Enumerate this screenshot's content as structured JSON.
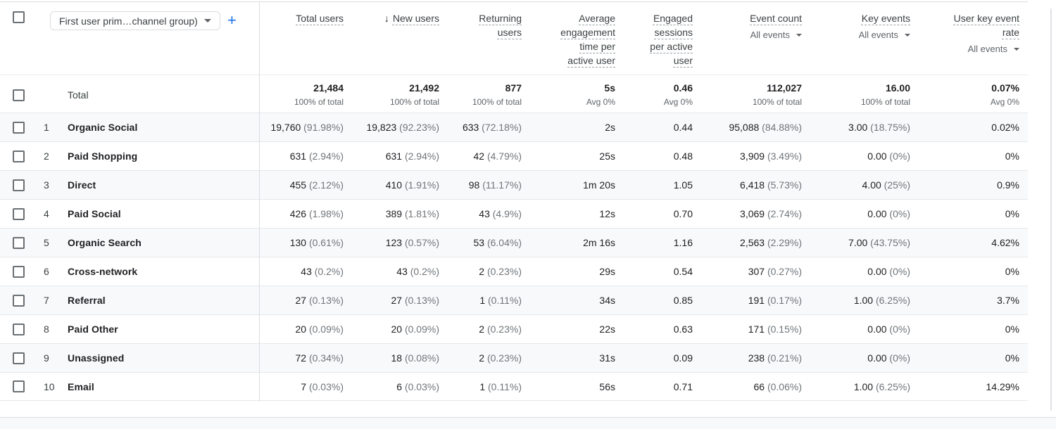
{
  "header": {
    "dimension_selector": "First user prim…channel group)",
    "add_dimension": "+"
  },
  "columns": [
    {
      "label": "Total users"
    },
    {
      "label": "New users",
      "sorted": "desc"
    },
    {
      "label": "Returning users"
    },
    {
      "label": "Average engagement time per active user"
    },
    {
      "label": "Engaged sessions per active user"
    },
    {
      "label": "Event count",
      "filter": "All events"
    },
    {
      "label": "Key events",
      "filter": "All events"
    },
    {
      "label": "User key event rate",
      "filter": "All events"
    }
  ],
  "total_row": {
    "label": "Total",
    "metrics": [
      {
        "v": "21,484",
        "sub": "100% of total"
      },
      {
        "v": "21,492",
        "sub": "100% of total"
      },
      {
        "v": "877",
        "sub": "100% of total"
      },
      {
        "v": "5s",
        "sub": "Avg 0%"
      },
      {
        "v": "0.46",
        "sub": "Avg 0%"
      },
      {
        "v": "112,027",
        "sub": "100% of total"
      },
      {
        "v": "16.00",
        "sub": "100% of total"
      },
      {
        "v": "0.07%",
        "sub": "Avg 0%"
      }
    ]
  },
  "rows": [
    {
      "num": "1",
      "channel": "Organic Social",
      "metrics": [
        {
          "v": "19,760",
          "p": "(91.98%)"
        },
        {
          "v": "19,823",
          "p": "(92.23%)"
        },
        {
          "v": "633",
          "p": "(72.18%)"
        },
        {
          "v": "2s"
        },
        {
          "v": "0.44"
        },
        {
          "v": "95,088",
          "p": "(84.88%)"
        },
        {
          "v": "3.00",
          "p": "(18.75%)"
        },
        {
          "v": "0.02%"
        }
      ]
    },
    {
      "num": "2",
      "channel": "Paid Shopping",
      "metrics": [
        {
          "v": "631",
          "p": "(2.94%)"
        },
        {
          "v": "631",
          "p": "(2.94%)"
        },
        {
          "v": "42",
          "p": "(4.79%)"
        },
        {
          "v": "25s"
        },
        {
          "v": "0.48"
        },
        {
          "v": "3,909",
          "p": "(3.49%)"
        },
        {
          "v": "0.00",
          "p": "(0%)"
        },
        {
          "v": "0%"
        }
      ]
    },
    {
      "num": "3",
      "channel": "Direct",
      "metrics": [
        {
          "v": "455",
          "p": "(2.12%)"
        },
        {
          "v": "410",
          "p": "(1.91%)"
        },
        {
          "v": "98",
          "p": "(11.17%)"
        },
        {
          "v": "1m 20s"
        },
        {
          "v": "1.05"
        },
        {
          "v": "6,418",
          "p": "(5.73%)"
        },
        {
          "v": "4.00",
          "p": "(25%)"
        },
        {
          "v": "0.9%"
        }
      ]
    },
    {
      "num": "4",
      "channel": "Paid Social",
      "metrics": [
        {
          "v": "426",
          "p": "(1.98%)"
        },
        {
          "v": "389",
          "p": "(1.81%)"
        },
        {
          "v": "43",
          "p": "(4.9%)"
        },
        {
          "v": "12s"
        },
        {
          "v": "0.70"
        },
        {
          "v": "3,069",
          "p": "(2.74%)"
        },
        {
          "v": "0.00",
          "p": "(0%)"
        },
        {
          "v": "0%"
        }
      ]
    },
    {
      "num": "5",
      "channel": "Organic Search",
      "metrics": [
        {
          "v": "130",
          "p": "(0.61%)"
        },
        {
          "v": "123",
          "p": "(0.57%)"
        },
        {
          "v": "53",
          "p": "(6.04%)"
        },
        {
          "v": "2m 16s"
        },
        {
          "v": "1.16"
        },
        {
          "v": "2,563",
          "p": "(2.29%)"
        },
        {
          "v": "7.00",
          "p": "(43.75%)"
        },
        {
          "v": "4.62%"
        }
      ]
    },
    {
      "num": "6",
      "channel": "Cross-network",
      "metrics": [
        {
          "v": "43",
          "p": "(0.2%)"
        },
        {
          "v": "43",
          "p": "(0.2%)"
        },
        {
          "v": "2",
          "p": "(0.23%)"
        },
        {
          "v": "29s"
        },
        {
          "v": "0.54"
        },
        {
          "v": "307",
          "p": "(0.27%)"
        },
        {
          "v": "0.00",
          "p": "(0%)"
        },
        {
          "v": "0%"
        }
      ]
    },
    {
      "num": "7",
      "channel": "Referral",
      "metrics": [
        {
          "v": "27",
          "p": "(0.13%)"
        },
        {
          "v": "27",
          "p": "(0.13%)"
        },
        {
          "v": "1",
          "p": "(0.11%)"
        },
        {
          "v": "34s"
        },
        {
          "v": "0.85"
        },
        {
          "v": "191",
          "p": "(0.17%)"
        },
        {
          "v": "1.00",
          "p": "(6.25%)"
        },
        {
          "v": "3.7%"
        }
      ]
    },
    {
      "num": "8",
      "channel": "Paid Other",
      "metrics": [
        {
          "v": "20",
          "p": "(0.09%)"
        },
        {
          "v": "20",
          "p": "(0.09%)"
        },
        {
          "v": "2",
          "p": "(0.23%)"
        },
        {
          "v": "22s"
        },
        {
          "v": "0.63"
        },
        {
          "v": "171",
          "p": "(0.15%)"
        },
        {
          "v": "0.00",
          "p": "(0%)"
        },
        {
          "v": "0%"
        }
      ]
    },
    {
      "num": "9",
      "channel": "Unassigned",
      "metrics": [
        {
          "v": "72",
          "p": "(0.34%)"
        },
        {
          "v": "18",
          "p": "(0.08%)"
        },
        {
          "v": "2",
          "p": "(0.23%)"
        },
        {
          "v": "31s"
        },
        {
          "v": "0.09"
        },
        {
          "v": "238",
          "p": "(0.21%)"
        },
        {
          "v": "0.00",
          "p": "(0%)"
        },
        {
          "v": "0%"
        }
      ]
    },
    {
      "num": "10",
      "channel": "Email",
      "metrics": [
        {
          "v": "7",
          "p": "(0.03%)"
        },
        {
          "v": "6",
          "p": "(0.03%)"
        },
        {
          "v": "1",
          "p": "(0.11%)"
        },
        {
          "v": "56s"
        },
        {
          "v": "0.71"
        },
        {
          "v": "66",
          "p": "(0.06%)"
        },
        {
          "v": "1.00",
          "p": "(6.25%)"
        },
        {
          "v": "14.29%"
        }
      ]
    }
  ]
}
